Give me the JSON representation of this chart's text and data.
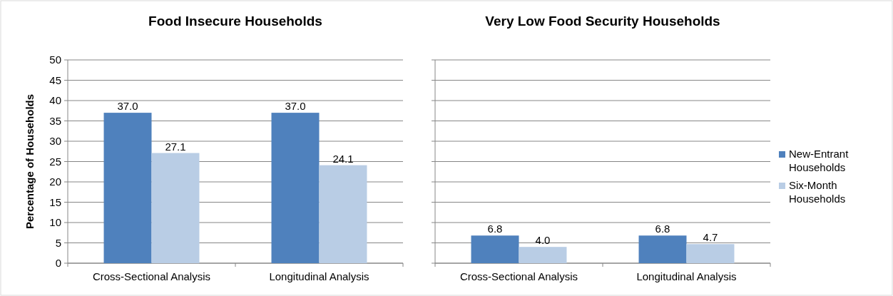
{
  "chart_data": [
    {
      "type": "bar",
      "title": "Food Insecure Households",
      "ylabel": "Percentage of Households",
      "categories": [
        "Cross-Sectional Analysis",
        "Longitudinal Analysis"
      ],
      "series": [
        {
          "color": "#4f81bd",
          "values": [
            37.0,
            37.0
          ],
          "value_labels": [
            "37.0",
            "37.0"
          ]
        },
        {
          "color": "#b9cde5",
          "values": [
            27.1,
            24.1
          ],
          "value_labels": [
            "27.1",
            "24.1"
          ]
        }
      ],
      "ylim": [
        0,
        50
      ],
      "yticks": [
        0,
        5,
        10,
        15,
        20,
        25,
        30,
        35,
        40,
        45,
        50
      ],
      "grid": "y"
    },
    {
      "type": "bar",
      "title": "Very Low Food Security Households",
      "categories": [
        "Cross-Sectional Analysis",
        "Longitudinal Analysis"
      ],
      "series": [
        {
          "name": "New-Entrant Households",
          "color": "#4f81bd",
          "values": [
            6.8,
            6.8
          ],
          "value_labels": [
            "6.8",
            "6.8"
          ]
        },
        {
          "name": "Six-Month Households",
          "color": "#b9cde5",
          "values": [
            4.0,
            4.7
          ],
          "value_labels": [
            "4.0",
            "4.7"
          ]
        }
      ],
      "ylim": [
        0,
        50
      ],
      "yticks": [
        0,
        5,
        10,
        15,
        20,
        25,
        30,
        35,
        40,
        45,
        50
      ],
      "grid": "y",
      "tick_labels": "x",
      "legend": "right"
    }
  ]
}
